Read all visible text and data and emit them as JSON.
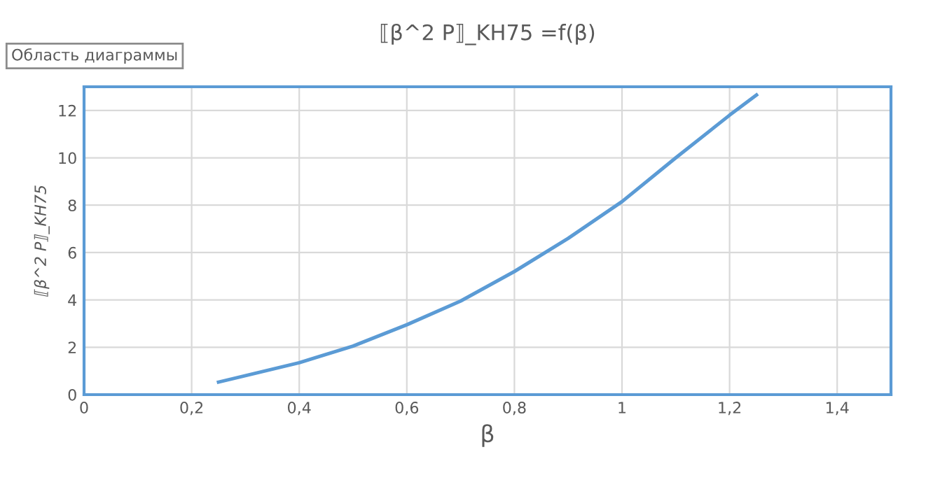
{
  "chart_data": {
    "type": "line",
    "title": "⟦β^2 P⟧_KH75 =f(β)",
    "xlabel": "β",
    "ylabel": "⟦β^2 P⟧_KH75",
    "annotations": [
      "Область диаграммы"
    ],
    "x": [
      0.25,
      0.3,
      0.4,
      0.5,
      0.6,
      0.7,
      0.8,
      0.9,
      1.0,
      1.1,
      1.2,
      1.25
    ],
    "series": [
      {
        "color": "#5b9bd5",
        "values": [
          0.53,
          0.8,
          1.35,
          2.05,
          2.95,
          3.95,
          5.2,
          6.6,
          8.15,
          10.0,
          11.8,
          12.65
        ]
      }
    ],
    "xlim": [
      0,
      1.5
    ],
    "xticks": [
      0,
      {
        "value": 0.2,
        "label": "0,2"
      },
      {
        "value": 0.4,
        "label": "0,4"
      },
      {
        "value": 0.6,
        "label": "0,6"
      },
      {
        "value": 0.8,
        "label": "0,8"
      },
      1,
      {
        "value": 1.2,
        "label": "1,2"
      },
      {
        "value": 1.4,
        "label": "1,4"
      }
    ],
    "ylim": [
      0,
      13
    ],
    "yticks": [
      0,
      2,
      4,
      6,
      8,
      10,
      12
    ],
    "grid": true,
    "legend": false,
    "marker": "none",
    "line_style": "solid"
  }
}
